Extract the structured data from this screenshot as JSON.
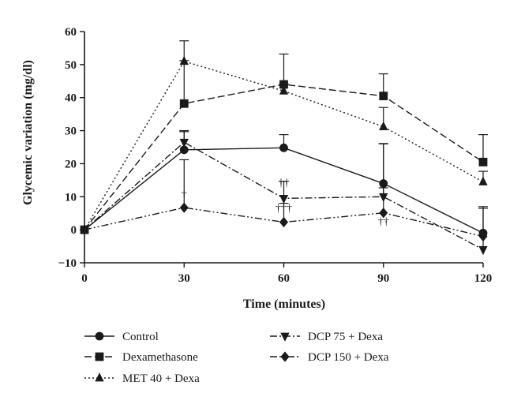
{
  "chart_data": {
    "type": "line",
    "xlabel": "Time (minutes)",
    "ylabel": "Glycemic variation (mg/dl)",
    "x": [
      0,
      30,
      60,
      90,
      120
    ],
    "xticks": [
      "0",
      "30",
      "60",
      "90",
      "120"
    ],
    "ylim": [
      -10,
      60
    ],
    "yticks": [
      "−10",
      "0",
      "10",
      "20",
      "30",
      "40",
      "50",
      "60"
    ],
    "grid": false,
    "legend_position": "bottom",
    "series": [
      {
        "name": "Control",
        "marker": "circle",
        "dash": "solid",
        "values": [
          0,
          24.2,
          24.8,
          14,
          -1
        ],
        "errors": [
          0,
          5.5,
          4,
          12,
          0
        ]
      },
      {
        "name": "Dexamethasone",
        "marker": "square",
        "dash": "long-dash",
        "values": [
          0,
          38.2,
          44,
          40.5,
          20.5
        ],
        "errors": [
          0,
          13,
          9.2,
          6.7,
          8.3
        ]
      },
      {
        "name": "MET 40 + Dexa",
        "marker": "triangle-up",
        "dash": "dotted",
        "values": [
          0,
          51,
          42,
          31.2,
          14.5
        ],
        "errors": [
          0,
          6.2,
          2.2,
          5.8,
          3.2
        ]
      },
      {
        "name": "DCP 75 + Dexa",
        "marker": "triangle-down",
        "dash": "dash-dot",
        "values": [
          0,
          26.5,
          9.5,
          10,
          -6
        ],
        "errors": [
          0,
          3.5,
          5.2,
          2.7,
          13
        ]
      },
      {
        "name": "DCP 150 + Dexa",
        "marker": "diamond",
        "dash": "dash-dot-dot",
        "values": [
          0,
          6.7,
          2.3,
          5.1,
          -2
        ],
        "errors": [
          0,
          14.5,
          5.7,
          21,
          8.5
        ]
      }
    ],
    "annotations": [
      {
        "text": "†",
        "x": 30,
        "y": 9.7
      },
      {
        "text": "††",
        "x": 60,
        "y": 13.2
      },
      {
        "text": "†††",
        "x": 60,
        "y": 5.5
      },
      {
        "text": "†",
        "x": 90,
        "y": 11.8
      },
      {
        "text": "††",
        "x": 90,
        "y": 1.5
      }
    ]
  }
}
